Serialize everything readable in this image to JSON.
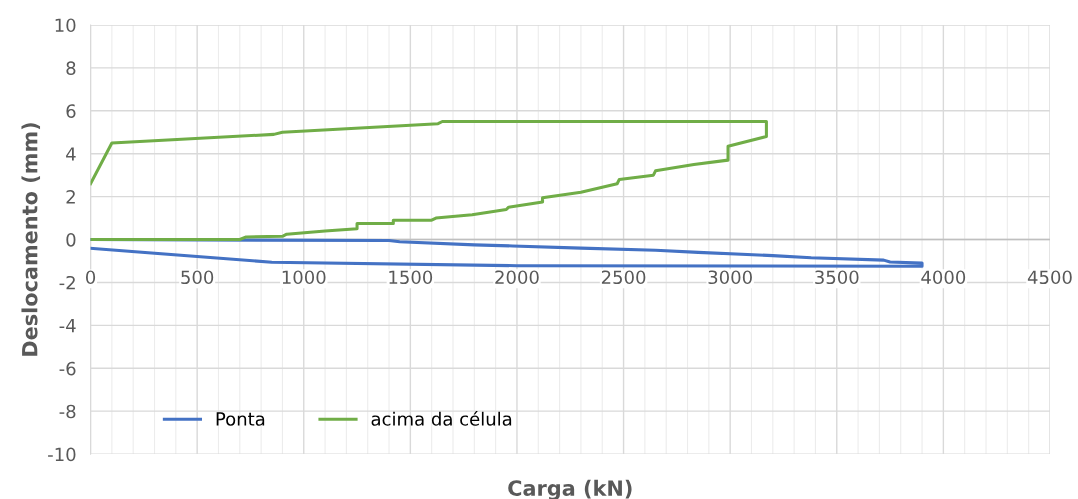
{
  "chart_data": {
    "type": "line",
    "xlabel": "Carga (kN)",
    "ylabel": "Deslocamento (mm)",
    "xlim": [
      0,
      4500
    ],
    "xticks": [
      0,
      500,
      1000,
      1500,
      2000,
      2500,
      3000,
      3500,
      4000,
      4500
    ],
    "ylim": [
      -10,
      10
    ],
    "yticks": [
      -10,
      -8,
      -6,
      -4,
      -2,
      0,
      2,
      4,
      6,
      8,
      10
    ],
    "grid": true,
    "legend": "bottom left",
    "marker": "none",
    "line_style": "solid",
    "series": [
      {
        "name": "Ponta",
        "color": "#4472c4",
        "x": [
          0,
          1400,
          1450,
          1800,
          1980,
          2300,
          2650,
          2850,
          3200,
          3380,
          3720,
          3750,
          3900,
          3900,
          2000,
          850,
          0
        ],
        "values": [
          0,
          -0.05,
          -0.1,
          -0.25,
          -0.3,
          -0.4,
          -0.5,
          -0.6,
          -0.75,
          -0.85,
          -0.96,
          -1.05,
          -1.1,
          -1.25,
          -1.22,
          -1.06,
          -0.41
        ]
      },
      {
        "name": "acima da célula",
        "color": "#70ad47",
        "x": [
          0,
          700,
          730,
          900,
          920,
          1100,
          1250,
          1250,
          1420,
          1420,
          1600,
          1620,
          1790,
          1950,
          1960,
          2120,
          2120,
          2300,
          2470,
          2480,
          2640,
          2650,
          2830,
          2990,
          2990,
          3170,
          3170,
          1650,
          1630,
          900,
          860,
          100,
          0
        ],
        "values": [
          0,
          0,
          0.12,
          0.15,
          0.25,
          0.4,
          0.5,
          0.75,
          0.75,
          0.9,
          0.9,
          1.0,
          1.15,
          1.4,
          1.5,
          1.75,
          1.95,
          2.2,
          2.6,
          2.8,
          3.0,
          3.2,
          3.5,
          3.7,
          4.35,
          4.8,
          5.5,
          5.5,
          5.4,
          5.0,
          4.9,
          4.5,
          2.6
        ]
      }
    ]
  }
}
